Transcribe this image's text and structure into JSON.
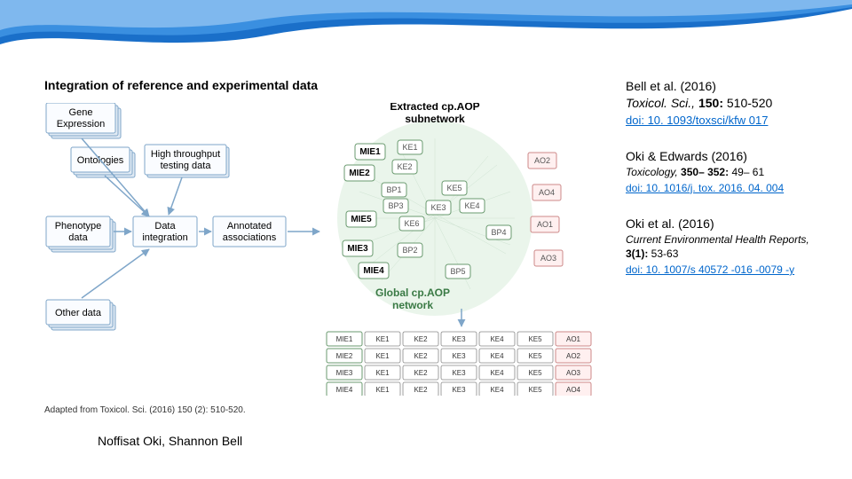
{
  "header": {
    "swoosh_color_top": "#1a6fc9",
    "swoosh_color_mid": "#3a8fe0",
    "swoosh_color_light": "#7fb8ee"
  },
  "figure": {
    "title": "Integration of reference and experimental data",
    "caption": "Adapted from Toxicol. Sci. (2016) 150 (2): 510-520.",
    "left_boxes": {
      "gene": "Gene\nExpression",
      "ontologies": "Ontologies",
      "hts": "High throughput\ntesting data",
      "phenotype": "Phenotype\ndata",
      "integration": "Data\nintegration",
      "annotated": "Annotated\nassociations",
      "other": "Other data"
    },
    "network": {
      "title": "Extracted cp.AOP\nsubnetwork",
      "global_label": "Global cp.AOP\nnetwork",
      "mie": [
        "MIE1",
        "MIE2",
        "MIE3",
        "MIE4",
        "MIE5"
      ],
      "ke": [
        "KE1",
        "KE2",
        "KE3",
        "KE4",
        "KE5",
        "KE6"
      ],
      "bp": [
        "BP1",
        "BP2",
        "BP3",
        "BP4",
        "BP5"
      ],
      "ao": [
        "AO1",
        "AO2",
        "AO3",
        "AO4"
      ]
    },
    "grid": {
      "rows": [
        [
          "MIE1",
          "KE1",
          "KE2",
          "KE3",
          "KE4",
          "KE5",
          "AO1"
        ],
        [
          "MIE2",
          "KE1",
          "KE2",
          "KE3",
          "KE4",
          "KE5",
          "AO2"
        ],
        [
          "MIE3",
          "KE1",
          "KE2",
          "KE3",
          "KE4",
          "KE5",
          "AO3"
        ],
        [
          "MIE4",
          "KE1",
          "KE2",
          "KE3",
          "KE4",
          "KE5",
          "AO4"
        ]
      ]
    },
    "box_stroke": "#7fa6c9",
    "box_fill": "#fafcff",
    "net_bg": "#d8ecdb",
    "ao_fill": "#fff0f0"
  },
  "citations": [
    {
      "authors": "Bell et al. (2016)",
      "journal": "Toxicol. Sci.,",
      "vol": "150:",
      "pages": "510-520",
      "doi": "doi: 10. 1093/toxsci/kfw 017",
      "small": false
    },
    {
      "authors": "Oki & Edwards (2016)",
      "journal": "Toxicology,",
      "vol": "350– 352:",
      "pages": "49– 61",
      "doi": "doi: 10. 1016/j. tox. 2016. 04. 004",
      "small": true
    },
    {
      "authors": "Oki et al. (2016)",
      "journal": "Current Environmental Health Reports,",
      "vol": "3(1):",
      "pages": "53-63",
      "doi": "doi: 10. 1007/s 40572 -016 -0079 -y",
      "small": true
    }
  ],
  "credits": "Noffisat Oki, Shannon Bell"
}
